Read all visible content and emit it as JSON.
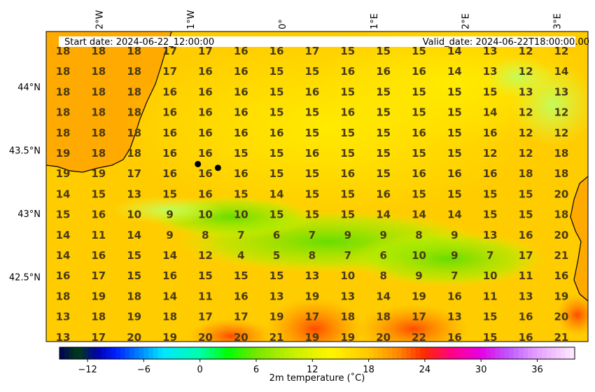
{
  "header": {
    "start_text": "Start date: 2024-06-22_12:00:00",
    "valid_text": "Valid_date: 2024-06-22T18:00:00.00"
  },
  "lon_ticks": [
    "2°W",
    "1°W",
    "0°",
    "1°E",
    "2°E",
    "3°E"
  ],
  "lat_ticks": [
    "44°N",
    "43.5°N",
    "43°N",
    "42.5°N"
  ],
  "colorbar": {
    "label": "2m temperature ($^\\circ$C)",
    "label_display": "2m temperature (˚C)",
    "ticks": [
      "-12",
      "-6",
      "0",
      "6",
      "12",
      "18",
      "24",
      "30",
      "36"
    ],
    "vmin": -15,
    "vmax": 40
  },
  "colors": {
    "coast": "#000000",
    "value_text": "#4a3a12",
    "point_marker": "#000000"
  },
  "grid_values": [
    [
      18,
      18,
      18,
      17,
      17,
      16,
      16,
      17,
      15,
      15,
      15,
      14,
      13,
      12,
      12
    ],
    [
      18,
      18,
      18,
      17,
      16,
      16,
      15,
      15,
      16,
      16,
      16,
      14,
      13,
      12,
      14
    ],
    [
      18,
      18,
      18,
      16,
      16,
      16,
      15,
      16,
      15,
      15,
      15,
      15,
      15,
      13,
      13
    ],
    [
      18,
      18,
      18,
      16,
      16,
      16,
      15,
      15,
      16,
      15,
      15,
      15,
      14,
      12,
      12
    ],
    [
      18,
      18,
      18,
      16,
      16,
      16,
      16,
      15,
      15,
      15,
      16,
      15,
      16,
      12,
      12
    ],
    [
      19,
      18,
      18,
      16,
      16,
      15,
      15,
      16,
      15,
      15,
      15,
      15,
      12,
      12,
      18
    ],
    [
      19,
      19,
      17,
      16,
      16,
      16,
      15,
      15,
      16,
      15,
      16,
      16,
      16,
      18,
      18
    ],
    [
      14,
      15,
      13,
      15,
      16,
      15,
      14,
      15,
      15,
      16,
      15,
      15,
      15,
      15,
      20
    ],
    [
      15,
      16,
      10,
      9,
      10,
      10,
      15,
      15,
      15,
      14,
      14,
      14,
      15,
      15,
      18
    ],
    [
      14,
      11,
      14,
      9,
      8,
      7,
      6,
      7,
      9,
      9,
      8,
      9,
      13,
      16,
      20
    ],
    [
      14,
      16,
      15,
      14,
      12,
      4,
      5,
      8,
      7,
      6,
      10,
      9,
      7,
      17,
      21
    ],
    [
      16,
      17,
      15,
      16,
      15,
      15,
      15,
      13,
      10,
      8,
      9,
      7,
      10,
      11,
      16
    ],
    [
      18,
      19,
      18,
      14,
      11,
      16,
      13,
      19,
      13,
      14,
      19,
      16,
      11,
      13,
      19
    ],
    [
      13,
      18,
      19,
      18,
      17,
      17,
      19,
      17,
      18,
      18,
      17,
      13,
      15,
      16,
      20
    ],
    [
      13,
      17,
      20,
      19,
      20,
      20,
      21,
      19,
      19,
      20,
      22,
      16,
      15,
      16,
      21
    ]
  ],
  "points": [
    {
      "lon": -0.92,
      "lat": 43.39
    },
    {
      "lon": -0.7,
      "lat": 43.36
    }
  ]
}
